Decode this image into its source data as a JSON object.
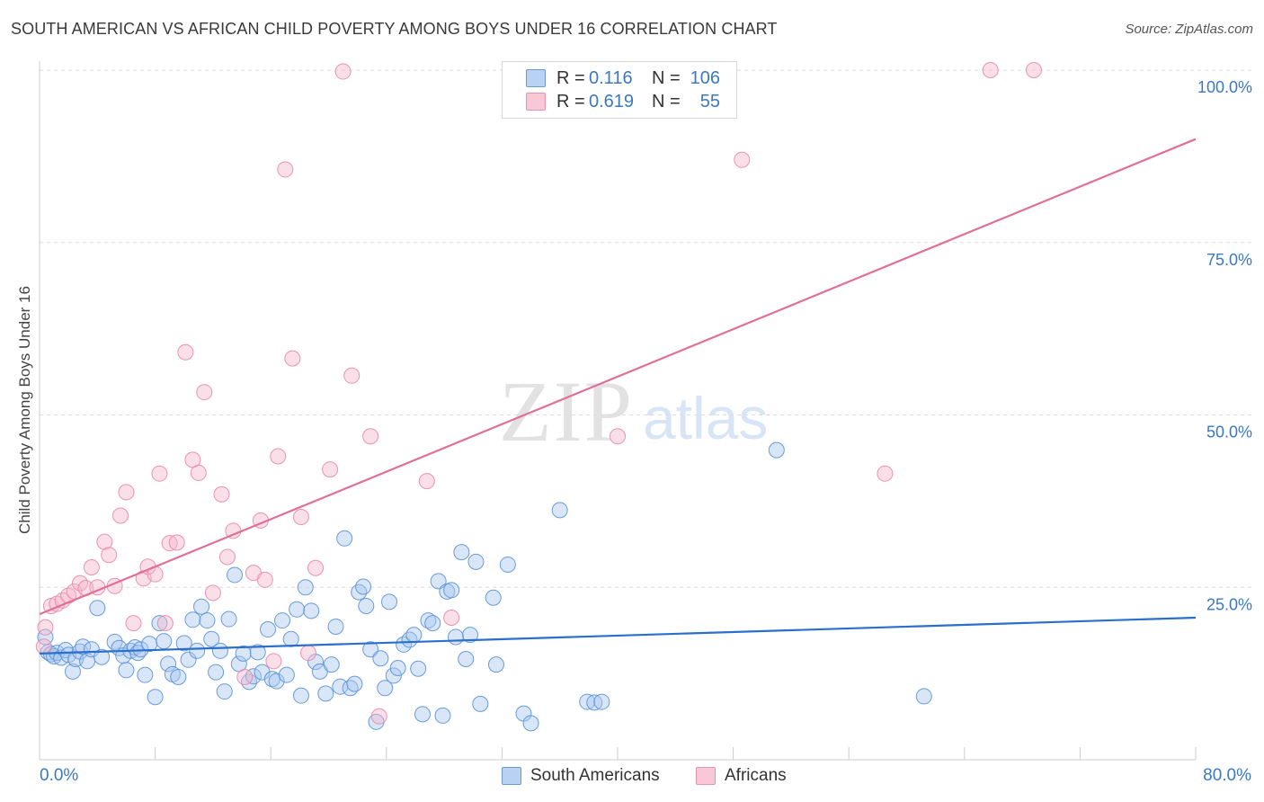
{
  "title": "SOUTH AMERICAN VS AFRICAN CHILD POVERTY AMONG BOYS UNDER 16 CORRELATION CHART",
  "source": "Source: ZipAtlas.com",
  "watermark": {
    "zip": "ZIP",
    "atlas": "atlas"
  },
  "legend": {
    "rows": [
      {
        "r_label": "R =",
        "r_value": "0.116",
        "n_label": "N =",
        "n_value": "106"
      },
      {
        "r_label": "R =",
        "r_value": "0.619",
        "n_label": "N =",
        "n_value": "55"
      }
    ]
  },
  "bottom_legend": [
    "South Americans",
    "Africans"
  ],
  "x_axis_labels": {
    "left": "0.0%",
    "right": "80.0%"
  },
  "colors": {
    "blue_fill": "#a9c8ef",
    "blue_stroke": "#5b92d6",
    "blue_line": "#2a6fcc",
    "pink_fill": "#f6b8cb",
    "pink_stroke": "#e88aa8",
    "pink_line": "#e07099",
    "axis_text": "#3b78c4",
    "grid": "#dddddd"
  },
  "chart_data": {
    "type": "scatter",
    "title": "SOUTH AMERICAN VS AFRICAN CHILD POVERTY AMONG BOYS UNDER 16 CORRELATION CHART",
    "xlabel": "",
    "ylabel": "Child Poverty Among Boys Under 16",
    "xlim": [
      0,
      80
    ],
    "ylim": [
      0,
      100
    ],
    "y_ticks": [
      {
        "value": 25,
        "label": "25.0%"
      },
      {
        "value": 50,
        "label": "50.0%"
      },
      {
        "value": 75,
        "label": "75.0%"
      },
      {
        "value": 100,
        "label": "100.0%"
      }
    ],
    "series": [
      {
        "name": "South Americans",
        "r": 0.116,
        "n": 106,
        "trend": {
          "x": [
            0,
            80
          ],
          "y": [
            15.4,
            20.6
          ]
        },
        "points": [
          [
            0.4,
            17.8
          ],
          [
            0.6,
            15.6
          ],
          [
            0.8,
            15.3
          ],
          [
            1.0,
            15.0
          ],
          [
            1.2,
            15.5
          ],
          [
            1.5,
            14.8
          ],
          [
            1.8,
            15.9
          ],
          [
            2.0,
            15.2
          ],
          [
            2.3,
            12.8
          ],
          [
            2.5,
            14.6
          ],
          [
            2.8,
            15.7
          ],
          [
            3.0,
            16.4
          ],
          [
            3.3,
            14.3
          ],
          [
            3.6,
            16.0
          ],
          [
            4.0,
            22.0
          ],
          [
            4.3,
            14.9
          ],
          [
            5.2,
            17.1
          ],
          [
            5.5,
            16.2
          ],
          [
            5.8,
            15.1
          ],
          [
            6.0,
            13.0
          ],
          [
            6.3,
            15.8
          ],
          [
            6.6,
            16.3
          ],
          [
            6.8,
            15.5
          ],
          [
            7.0,
            16.0
          ],
          [
            7.3,
            12.3
          ],
          [
            7.6,
            16.8
          ],
          [
            8.0,
            9.1
          ],
          [
            8.3,
            19.8
          ],
          [
            8.6,
            17.2
          ],
          [
            8.9,
            13.9
          ],
          [
            9.2,
            12.4
          ],
          [
            9.6,
            12.0
          ],
          [
            10.0,
            16.9
          ],
          [
            10.3,
            14.5
          ],
          [
            10.6,
            20.3
          ],
          [
            10.9,
            15.8
          ],
          [
            11.2,
            22.2
          ],
          [
            11.6,
            20.2
          ],
          [
            11.9,
            17.5
          ],
          [
            12.2,
            12.7
          ],
          [
            12.5,
            15.8
          ],
          [
            12.8,
            9.9
          ],
          [
            13.1,
            20.4
          ],
          [
            13.5,
            26.8
          ],
          [
            13.8,
            13.9
          ],
          [
            14.1,
            15.4
          ],
          [
            14.5,
            11.3
          ],
          [
            14.8,
            12.1
          ],
          [
            15.1,
            15.6
          ],
          [
            15.4,
            12.7
          ],
          [
            15.8,
            18.9
          ],
          [
            16.1,
            11.7
          ],
          [
            16.4,
            11.4
          ],
          [
            16.8,
            20.2
          ],
          [
            17.1,
            12.3
          ],
          [
            17.4,
            17.5
          ],
          [
            17.8,
            21.8
          ],
          [
            18.1,
            9.3
          ],
          [
            18.4,
            25.0
          ],
          [
            18.8,
            21.6
          ],
          [
            19.1,
            14.2
          ],
          [
            19.4,
            12.8
          ],
          [
            19.8,
            9.6
          ],
          [
            20.2,
            13.8
          ],
          [
            20.5,
            19.3
          ],
          [
            20.8,
            10.6
          ],
          [
            21.1,
            32.1
          ],
          [
            21.5,
            10.4
          ],
          [
            21.8,
            11.0
          ],
          [
            22.1,
            24.3
          ],
          [
            22.4,
            25.1
          ],
          [
            22.6,
            22.3
          ],
          [
            22.9,
            16.0
          ],
          [
            23.3,
            5.5
          ],
          [
            23.6,
            14.7
          ],
          [
            23.9,
            10.4
          ],
          [
            24.2,
            22.9
          ],
          [
            24.5,
            12.2
          ],
          [
            24.8,
            13.3
          ],
          [
            25.2,
            16.7
          ],
          [
            25.6,
            17.4
          ],
          [
            25.9,
            18.1
          ],
          [
            26.2,
            13.2
          ],
          [
            26.5,
            6.6
          ],
          [
            26.9,
            20.2
          ],
          [
            27.2,
            19.8
          ],
          [
            27.6,
            25.9
          ],
          [
            27.9,
            6.4
          ],
          [
            28.2,
            24.4
          ],
          [
            28.5,
            24.6
          ],
          [
            28.8,
            17.8
          ],
          [
            29.2,
            30.1
          ],
          [
            29.5,
            14.6
          ],
          [
            29.8,
            18.1
          ],
          [
            30.2,
            28.7
          ],
          [
            30.5,
            8.1
          ],
          [
            31.4,
            23.5
          ],
          [
            31.6,
            13.8
          ],
          [
            32.4,
            28.3
          ],
          [
            33.5,
            6.7
          ],
          [
            34.0,
            5.3
          ],
          [
            36.0,
            36.2
          ],
          [
            37.9,
            8.4
          ],
          [
            38.4,
            8.3
          ],
          [
            38.9,
            8.4
          ],
          [
            51.0,
            44.9
          ],
          [
            61.2,
            9.2
          ]
        ]
      },
      {
        "name": "Africans",
        "r": 0.619,
        "n": 55,
        "trend": {
          "x": [
            0,
            80
          ],
          "y": [
            21.1,
            90.0
          ]
        },
        "points": [
          [
            0.3,
            16.4
          ],
          [
            0.4,
            19.2
          ],
          [
            0.8,
            22.3
          ],
          [
            1.2,
            22.6
          ],
          [
            1.6,
            23.1
          ],
          [
            2.0,
            23.8
          ],
          [
            2.4,
            24.4
          ],
          [
            2.8,
            25.6
          ],
          [
            3.2,
            24.9
          ],
          [
            3.6,
            27.9
          ],
          [
            4.0,
            25.0
          ],
          [
            4.5,
            31.6
          ],
          [
            4.8,
            29.7
          ],
          [
            5.2,
            25.2
          ],
          [
            5.6,
            35.4
          ],
          [
            6.0,
            38.8
          ],
          [
            6.5,
            19.8
          ],
          [
            7.2,
            26.3
          ],
          [
            7.5,
            28.0
          ],
          [
            8.0,
            26.9
          ],
          [
            8.3,
            41.5
          ],
          [
            8.7,
            19.8
          ],
          [
            9.0,
            31.4
          ],
          [
            9.5,
            31.5
          ],
          [
            10.1,
            59.1
          ],
          [
            10.6,
            43.5
          ],
          [
            11.0,
            41.6
          ],
          [
            11.4,
            53.3
          ],
          [
            12.0,
            24.2
          ],
          [
            12.6,
            38.5
          ],
          [
            13.0,
            29.4
          ],
          [
            13.4,
            33.2
          ],
          [
            14.2,
            12.0
          ],
          [
            14.8,
            27.1
          ],
          [
            15.3,
            34.7
          ],
          [
            15.6,
            26.1
          ],
          [
            16.2,
            14.3
          ],
          [
            16.5,
            44.0
          ],
          [
            17.0,
            85.6
          ],
          [
            17.5,
            58.2
          ],
          [
            18.1,
            35.2
          ],
          [
            18.6,
            15.5
          ],
          [
            19.1,
            27.8
          ],
          [
            20.1,
            42.1
          ],
          [
            21.0,
            99.8
          ],
          [
            21.6,
            55.7
          ],
          [
            22.9,
            46.9
          ],
          [
            23.5,
            6.3
          ],
          [
            26.8,
            40.4
          ],
          [
            28.5,
            20.6
          ],
          [
            40.0,
            46.9
          ],
          [
            48.6,
            87.0
          ],
          [
            58.5,
            41.5
          ],
          [
            65.8,
            100.0
          ],
          [
            68.8,
            100.0
          ]
        ]
      }
    ]
  }
}
